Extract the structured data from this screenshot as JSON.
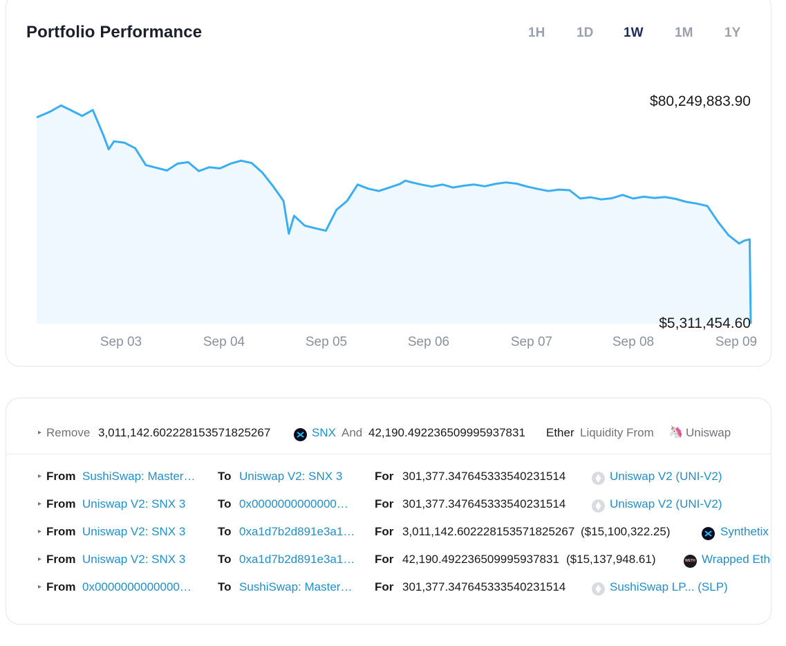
{
  "performance": {
    "title": "Portfolio Performance",
    "ranges": [
      {
        "label": "1H",
        "active": false
      },
      {
        "label": "1D",
        "active": false
      },
      {
        "label": "1W",
        "active": true
      },
      {
        "label": "1M",
        "active": false
      },
      {
        "label": "1Y",
        "active": false
      }
    ]
  },
  "chart_data": {
    "type": "area",
    "title": "Portfolio Performance",
    "line_color": "#3aaef2",
    "fill_color": "#eef8fe",
    "max_label": "$80,249,883.90",
    "min_label": "$5,311,454.60",
    "ylim": [
      5311454.6,
      80249883.9
    ],
    "x_ticks": [
      "Sep 03",
      "Sep 04",
      "Sep 05",
      "Sep 06",
      "Sep 07",
      "Sep 08",
      "Sep 09"
    ],
    "x": [
      2.37,
      2.5,
      2.6,
      2.7,
      2.8,
      2.9,
      3.0,
      3.05,
      3.1,
      3.2,
      3.3,
      3.4,
      3.5,
      3.6,
      3.7,
      3.8,
      3.9,
      4.0,
      4.1,
      4.2,
      4.3,
      4.4,
      4.5,
      4.6,
      4.7,
      4.75,
      4.8,
      4.9,
      5.0,
      5.1,
      5.2,
      5.3,
      5.4,
      5.5,
      5.6,
      5.7,
      5.8,
      5.85,
      5.9,
      6.0,
      6.1,
      6.2,
      6.3,
      6.4,
      6.5,
      6.6,
      6.7,
      6.8,
      6.9,
      7.0,
      7.1,
      7.2,
      7.3,
      7.4,
      7.5,
      7.6,
      7.7,
      7.8,
      7.9,
      8.0,
      8.1,
      8.2,
      8.3,
      8.4,
      8.5,
      8.6,
      8.7,
      8.8,
      8.9,
      9.0,
      9.05,
      9.1,
      9.11
    ],
    "values": [
      74500000,
      76500000,
      78500000,
      76800000,
      75000000,
      77000000,
      68500000,
      63800000,
      66500000,
      66000000,
      64200000,
      58500000,
      57600000,
      56700000,
      59000000,
      59500000,
      56500000,
      57800000,
      57400000,
      59000000,
      60000000,
      59200000,
      56000000,
      51500000,
      46500000,
      35500000,
      41500000,
      38200000,
      37300000,
      36500000,
      43500000,
      46500000,
      52000000,
      50600000,
      49800000,
      51000000,
      52200000,
      53300000,
      52800000,
      52000000,
      51300000,
      52000000,
      51000000,
      51600000,
      52000000,
      51400000,
      52200000,
      52700000,
      52300000,
      51300000,
      50500000,
      49800000,
      50300000,
      50100000,
      47300000,
      47700000,
      47000000,
      47400000,
      48500000,
      47300000,
      47900000,
      47500000,
      47800000,
      47200000,
      46200000,
      45600000,
      44800000,
      39500000,
      35000000,
      32200000,
      33200000,
      33600000,
      5311454.6
    ]
  },
  "transactions": {
    "summary": {
      "action": "Remove",
      "amount1": "3,011,142.602228153571825267",
      "token1": "SNX",
      "conj": "And",
      "amount2": "42,190.492236509995937831",
      "token2": "Ether",
      "tail": "Liquidity From",
      "protocol": "Uniswap"
    },
    "labels": {
      "from": "From",
      "to": "To",
      "for": "For"
    },
    "rows": [
      {
        "from": "SushiSwap: Master…",
        "to": "Uniswap V2: SNX 3",
        "amount": "301,377.347645333540231514",
        "usd": "",
        "icon": "uniswap-lp-icon",
        "token": "Uniswap V2 (UNI-V2)"
      },
      {
        "from": "Uniswap V2: SNX 3",
        "to": "0x0000000000000…",
        "amount": "301,377.347645333540231514",
        "usd": "",
        "icon": "uniswap-lp-icon",
        "token": "Uniswap V2 (UNI-V2)"
      },
      {
        "from": "Uniswap V2: SNX 3",
        "to": "0xa1d7b2d891e3a1…",
        "amount": "3,011,142.602228153571825267",
        "usd": "($15,100,322.25)",
        "icon": "synthetix-icon",
        "token": "Synthetix Network Token"
      },
      {
        "from": "Uniswap V2: SNX 3",
        "to": "0xa1d7b2d891e3a1…",
        "amount": "42,190.492236509995937831",
        "usd": "($15,137,948.61)",
        "icon": "weth-icon",
        "token": "Wrapped Ether"
      },
      {
        "from": "0x0000000000000…",
        "to": "SushiSwap: Master…",
        "amount": "301,377.347645333540231514",
        "usd": "",
        "icon": "sushiswap-lp-icon",
        "token": "SushiSwap LP... (SLP)"
      }
    ]
  }
}
